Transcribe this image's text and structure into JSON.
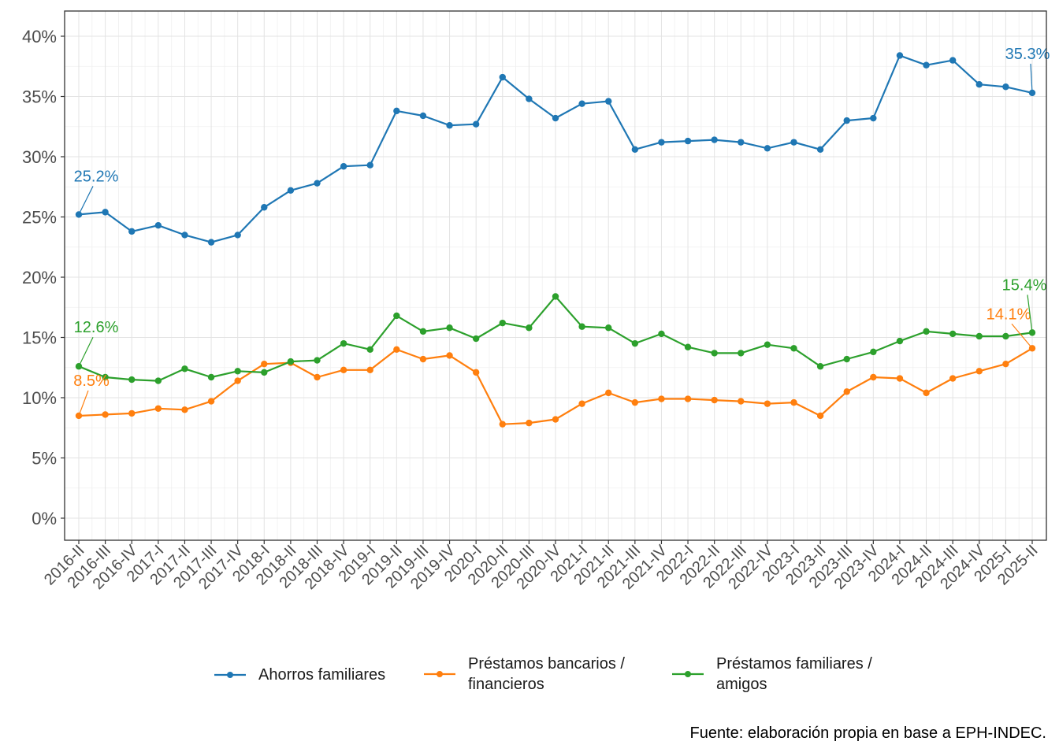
{
  "chart_data": {
    "type": "line",
    "title": "",
    "xlabel": "",
    "ylabel": "",
    "ylim": [
      0,
      40
    ],
    "grid": true,
    "legend_position": "bottom",
    "y_ticks": [
      "0%",
      "5%",
      "10%",
      "15%",
      "20%",
      "25%",
      "30%",
      "35%",
      "40%"
    ],
    "y_tick_values": [
      0,
      5,
      10,
      15,
      20,
      25,
      30,
      35,
      40
    ],
    "categories": [
      "2016-II",
      "2016-III",
      "2016-IV",
      "2017-I",
      "2017-II",
      "2017-III",
      "2017-IV",
      "2018-I",
      "2018-II",
      "2018-III",
      "2018-IV",
      "2019-I",
      "2019-II",
      "2019-III",
      "2019-IV",
      "2020-I",
      "2020-II",
      "2020-III",
      "2020-IV",
      "2021-I",
      "2021-II",
      "2021-III",
      "2021-IV",
      "2022-I",
      "2022-II",
      "2022-III",
      "2022-IV",
      "2023-I",
      "2023-II",
      "2023-III",
      "2023-IV",
      "2024-I",
      "2024-II",
      "2024-III",
      "2024-IV",
      "2025-I",
      "2025-II"
    ],
    "series": [
      {
        "name": "Ahorros familiares",
        "color": "#1f77b4",
        "values": [
          25.2,
          25.4,
          23.8,
          24.3,
          23.5,
          22.9,
          23.5,
          25.8,
          27.2,
          27.8,
          29.2,
          29.3,
          33.8,
          33.4,
          32.6,
          32.7,
          36.6,
          34.8,
          33.2,
          34.4,
          34.6,
          30.6,
          31.2,
          31.3,
          31.4,
          31.2,
          30.7,
          31.2,
          30.6,
          33.0,
          33.2,
          38.4,
          37.6,
          38.0,
          36.0,
          35.8,
          35.3
        ],
        "labels": {
          "first": "25.2%",
          "last": "35.3%"
        }
      },
      {
        "name": "Préstamos bancarios /\nfinancieros",
        "color": "#ff7f0e",
        "values": [
          8.5,
          8.6,
          8.7,
          9.1,
          9.0,
          9.7,
          11.4,
          12.8,
          12.9,
          11.7,
          12.3,
          12.3,
          14.0,
          13.2,
          13.5,
          12.1,
          7.8,
          7.9,
          8.2,
          9.5,
          10.4,
          9.6,
          9.9,
          9.9,
          9.8,
          9.7,
          9.5,
          9.6,
          8.5,
          10.5,
          11.7,
          11.6,
          10.4,
          11.6,
          12.2,
          12.8,
          14.1
        ],
        "labels": {
          "first": "8.5%",
          "last": "14.1%"
        }
      },
      {
        "name": "Préstamos familiares /\namigos",
        "color": "#2ca02c",
        "values": [
          12.6,
          11.7,
          11.5,
          11.4,
          12.4,
          11.7,
          12.2,
          12.1,
          13.0,
          13.1,
          14.5,
          14.0,
          16.8,
          15.5,
          15.8,
          14.9,
          16.2,
          15.8,
          18.4,
          15.9,
          15.8,
          14.5,
          15.3,
          14.2,
          13.7,
          13.7,
          14.4,
          14.1,
          12.6,
          13.2,
          13.8,
          14.7,
          15.5,
          15.3,
          15.1,
          15.1,
          15.4
        ],
        "labels": {
          "first": "12.6%",
          "last": "15.4%"
        }
      }
    ]
  },
  "caption": "Fuente: elaboración propia en base a EPH-INDEC."
}
